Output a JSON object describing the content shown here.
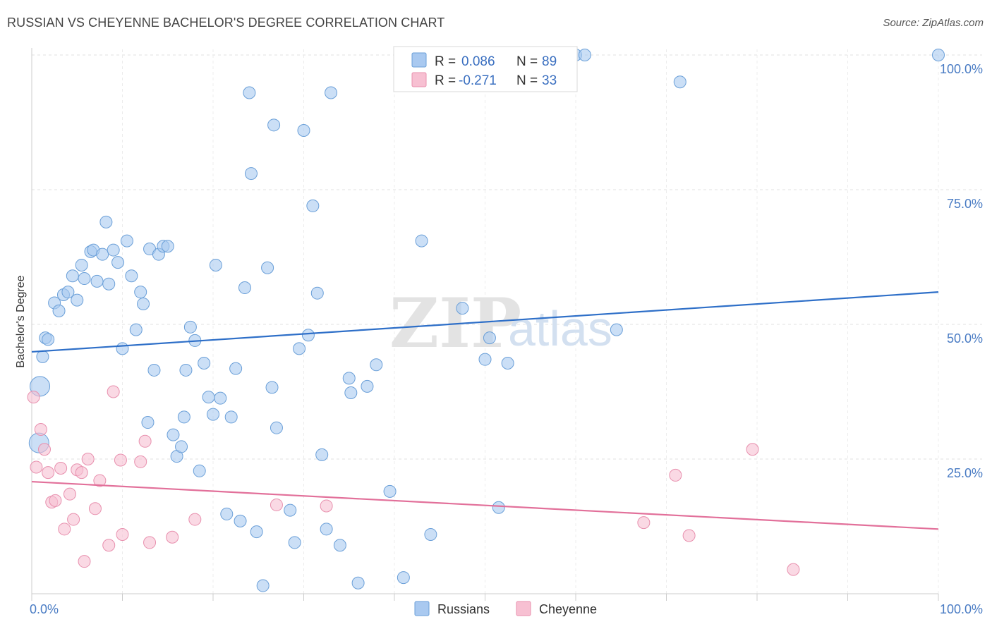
{
  "header": {
    "title": "RUSSIAN VS CHEYENNE BACHELOR'S DEGREE CORRELATION CHART",
    "source": "Source: ZipAtlas.com"
  },
  "watermark": {
    "zip": "ZIP",
    "atlas": "atlas"
  },
  "legend_top": [
    {
      "r_label": "R = ",
      "r_value": "0.086",
      "n_label": "N = ",
      "n_value": "89",
      "color": "#a9c9f0",
      "border": "#6a9fd8"
    },
    {
      "r_label": "R = ",
      "r_value": "-0.271",
      "n_label": "N = ",
      "n_value": "33",
      "color": "#f7c0d2",
      "border": "#e890ae"
    }
  ],
  "legend_bottom": [
    {
      "label": "Russians",
      "color": "#a9c9f0",
      "border": "#6a9fd8"
    },
    {
      "label": "Cheyenne",
      "color": "#f7c0d2",
      "border": "#e890ae"
    }
  ],
  "chart_data": {
    "type": "scatter",
    "title": "RUSSIAN VS CHEYENNE BACHELOR'S DEGREE CORRELATION CHART",
    "ylabel": "Bachelor's Degree",
    "xlabel": "",
    "xlim": [
      0,
      100
    ],
    "ylim": [
      0,
      100
    ],
    "x_tick_labels": [
      {
        "value": 0,
        "label": "0.0%"
      },
      {
        "value": 100,
        "label": "100.0%"
      }
    ],
    "y_tick_labels": [
      {
        "value": 25,
        "label": "25.0%"
      },
      {
        "value": 50,
        "label": "50.0%"
      },
      {
        "value": 75,
        "label": "75.0%"
      },
      {
        "value": 100,
        "label": "100.0%"
      }
    ],
    "grid": true,
    "legend_position": "top-center",
    "series": [
      {
        "name": "Russians",
        "color": "#a9c9f0",
        "stroke": "#6a9fd8",
        "trend_color": "#2e6fc8",
        "trend": {
          "x": [
            0,
            100
          ],
          "y": [
            44.9,
            56.0
          ]
        },
        "points": [
          {
            "x": 0.8,
            "y": 28.0,
            "big": true
          },
          {
            "x": 0.9,
            "y": 38.5,
            "big": true
          },
          {
            "x": 1.2,
            "y": 44.0,
            "big": false
          },
          {
            "x": 1.5,
            "y": 47.5,
            "big": false
          },
          {
            "x": 1.8,
            "y": 47.2,
            "big": false
          },
          {
            "x": 2.5,
            "y": 54.0,
            "big": false
          },
          {
            "x": 3.0,
            "y": 52.5,
            "big": false
          },
          {
            "x": 3.5,
            "y": 55.5,
            "big": false
          },
          {
            "x": 4.0,
            "y": 56.0,
            "big": false
          },
          {
            "x": 4.5,
            "y": 59.0,
            "big": false
          },
          {
            "x": 5.0,
            "y": 54.5,
            "big": false
          },
          {
            "x": 5.5,
            "y": 61.0,
            "big": false
          },
          {
            "x": 5.8,
            "y": 58.5,
            "big": false
          },
          {
            "x": 6.5,
            "y": 63.5,
            "big": false
          },
          {
            "x": 6.8,
            "y": 63.8,
            "big": false
          },
          {
            "x": 7.2,
            "y": 58.0,
            "big": false
          },
          {
            "x": 7.8,
            "y": 63.0,
            "big": false
          },
          {
            "x": 8.2,
            "y": 69.0,
            "big": false
          },
          {
            "x": 8.5,
            "y": 57.5,
            "big": false
          },
          {
            "x": 9.0,
            "y": 63.8,
            "big": false
          },
          {
            "x": 9.5,
            "y": 61.5,
            "big": false
          },
          {
            "x": 10.0,
            "y": 45.5,
            "big": false
          },
          {
            "x": 10.5,
            "y": 65.5,
            "big": false
          },
          {
            "x": 11.0,
            "y": 59.0,
            "big": false
          },
          {
            "x": 11.5,
            "y": 49.0,
            "big": false
          },
          {
            "x": 12.0,
            "y": 56.0,
            "big": false
          },
          {
            "x": 12.3,
            "y": 53.8,
            "big": false
          },
          {
            "x": 12.8,
            "y": 31.8,
            "big": false
          },
          {
            "x": 13.0,
            "y": 64.0,
            "big": false
          },
          {
            "x": 13.5,
            "y": 41.5,
            "big": false
          },
          {
            "x": 14.0,
            "y": 63.0,
            "big": false
          },
          {
            "x": 14.5,
            "y": 64.5,
            "big": false
          },
          {
            "x": 15.0,
            "y": 64.5,
            "big": false
          },
          {
            "x": 15.6,
            "y": 29.5,
            "big": false
          },
          {
            "x": 16.0,
            "y": 25.5,
            "big": false
          },
          {
            "x": 16.5,
            "y": 27.3,
            "big": false
          },
          {
            "x": 16.8,
            "y": 32.8,
            "big": false
          },
          {
            "x": 17.0,
            "y": 41.5,
            "big": false
          },
          {
            "x": 17.5,
            "y": 49.5,
            "big": false
          },
          {
            "x": 18.0,
            "y": 47.0,
            "big": false
          },
          {
            "x": 18.5,
            "y": 22.8,
            "big": false
          },
          {
            "x": 19.0,
            "y": 42.8,
            "big": false
          },
          {
            "x": 19.5,
            "y": 36.5,
            "big": false
          },
          {
            "x": 20.0,
            "y": 33.3,
            "big": false
          },
          {
            "x": 20.3,
            "y": 61.0,
            "big": false
          },
          {
            "x": 20.8,
            "y": 36.3,
            "big": false
          },
          {
            "x": 21.5,
            "y": 14.8,
            "big": false
          },
          {
            "x": 22.0,
            "y": 32.8,
            "big": false
          },
          {
            "x": 22.5,
            "y": 41.8,
            "big": false
          },
          {
            "x": 23.0,
            "y": 13.5,
            "big": false
          },
          {
            "x": 23.5,
            "y": 56.8,
            "big": false
          },
          {
            "x": 24.0,
            "y": 93.0,
            "big": false
          },
          {
            "x": 24.2,
            "y": 78.0,
            "big": false
          },
          {
            "x": 24.8,
            "y": 11.5,
            "big": false
          },
          {
            "x": 25.5,
            "y": 1.5,
            "big": false
          },
          {
            "x": 26.0,
            "y": 60.5,
            "big": false
          },
          {
            "x": 26.5,
            "y": 38.3,
            "big": false
          },
          {
            "x": 26.7,
            "y": 87.0,
            "big": false
          },
          {
            "x": 27.0,
            "y": 30.8,
            "big": false
          },
          {
            "x": 28.5,
            "y": 15.5,
            "big": false
          },
          {
            "x": 29.0,
            "y": 9.5,
            "big": false
          },
          {
            "x": 29.5,
            "y": 45.5,
            "big": false
          },
          {
            "x": 30.0,
            "y": 86.0,
            "big": false
          },
          {
            "x": 30.5,
            "y": 48.0,
            "big": false
          },
          {
            "x": 31.0,
            "y": 72.0,
            "big": false
          },
          {
            "x": 31.5,
            "y": 55.8,
            "big": false
          },
          {
            "x": 32.0,
            "y": 25.8,
            "big": false
          },
          {
            "x": 32.5,
            "y": 12.0,
            "big": false
          },
          {
            "x": 33.0,
            "y": 93.0,
            "big": false
          },
          {
            "x": 34.0,
            "y": 9.0,
            "big": false
          },
          {
            "x": 35.0,
            "y": 40.0,
            "big": false
          },
          {
            "x": 35.2,
            "y": 37.3,
            "big": false
          },
          {
            "x": 36.0,
            "y": 2.0,
            "big": false
          },
          {
            "x": 37.0,
            "y": 38.5,
            "big": false
          },
          {
            "x": 38.0,
            "y": 42.5,
            "big": false
          },
          {
            "x": 39.5,
            "y": 19.0,
            "big": false
          },
          {
            "x": 41.0,
            "y": 3.0,
            "big": false
          },
          {
            "x": 43.0,
            "y": 65.5,
            "big": false
          },
          {
            "x": 44.0,
            "y": 11.0,
            "big": false
          },
          {
            "x": 47.5,
            "y": 53.0,
            "big": false
          },
          {
            "x": 50.0,
            "y": 43.5,
            "big": false
          },
          {
            "x": 50.5,
            "y": 47.5,
            "big": false
          },
          {
            "x": 51.5,
            "y": 16.0,
            "big": false
          },
          {
            "x": 52.5,
            "y": 42.8,
            "big": false
          },
          {
            "x": 60.0,
            "y": 100.0,
            "big": false
          },
          {
            "x": 61.0,
            "y": 100.0,
            "big": false
          },
          {
            "x": 64.5,
            "y": 49.0,
            "big": false
          },
          {
            "x": 71.5,
            "y": 95.0,
            "big": false
          },
          {
            "x": 100.0,
            "y": 100.0,
            "big": false
          }
        ]
      },
      {
        "name": "Cheyenne",
        "color": "#f7c0d2",
        "stroke": "#e890ae",
        "trend_color": "#e2709a",
        "trend": {
          "x": [
            0,
            100
          ],
          "y": [
            20.8,
            12.0
          ]
        },
        "points": [
          {
            "x": 0.2,
            "y": 36.5,
            "big": false
          },
          {
            "x": 0.5,
            "y": 23.5,
            "big": false
          },
          {
            "x": 1.0,
            "y": 30.5,
            "big": false
          },
          {
            "x": 1.4,
            "y": 26.8,
            "big": false
          },
          {
            "x": 1.8,
            "y": 22.5,
            "big": false
          },
          {
            "x": 2.2,
            "y": 17.0,
            "big": false
          },
          {
            "x": 2.6,
            "y": 17.3,
            "big": false
          },
          {
            "x": 3.2,
            "y": 23.3,
            "big": false
          },
          {
            "x": 3.6,
            "y": 12.0,
            "big": false
          },
          {
            "x": 4.2,
            "y": 18.5,
            "big": false
          },
          {
            "x": 4.6,
            "y": 13.8,
            "big": false
          },
          {
            "x": 5.0,
            "y": 23.0,
            "big": false
          },
          {
            "x": 5.5,
            "y": 22.5,
            "big": false
          },
          {
            "x": 5.8,
            "y": 6.0,
            "big": false
          },
          {
            "x": 6.2,
            "y": 25.0,
            "big": false
          },
          {
            "x": 7.0,
            "y": 15.8,
            "big": false
          },
          {
            "x": 7.5,
            "y": 21.0,
            "big": false
          },
          {
            "x": 8.5,
            "y": 9.0,
            "big": false
          },
          {
            "x": 9.0,
            "y": 37.5,
            "big": false
          },
          {
            "x": 9.8,
            "y": 24.8,
            "big": false
          },
          {
            "x": 10.0,
            "y": 11.0,
            "big": false
          },
          {
            "x": 12.0,
            "y": 24.5,
            "big": false
          },
          {
            "x": 12.5,
            "y": 28.3,
            "big": false
          },
          {
            "x": 13.0,
            "y": 9.5,
            "big": false
          },
          {
            "x": 15.5,
            "y": 10.5,
            "big": false
          },
          {
            "x": 18.0,
            "y": 13.8,
            "big": false
          },
          {
            "x": 27.0,
            "y": 16.5,
            "big": false
          },
          {
            "x": 32.5,
            "y": 16.3,
            "big": false
          },
          {
            "x": 67.5,
            "y": 13.2,
            "big": false
          },
          {
            "x": 71.0,
            "y": 22.0,
            "big": false
          },
          {
            "x": 72.5,
            "y": 10.8,
            "big": false
          },
          {
            "x": 79.5,
            "y": 26.8,
            "big": false
          },
          {
            "x": 84.0,
            "y": 4.5,
            "big": false
          }
        ]
      }
    ]
  }
}
